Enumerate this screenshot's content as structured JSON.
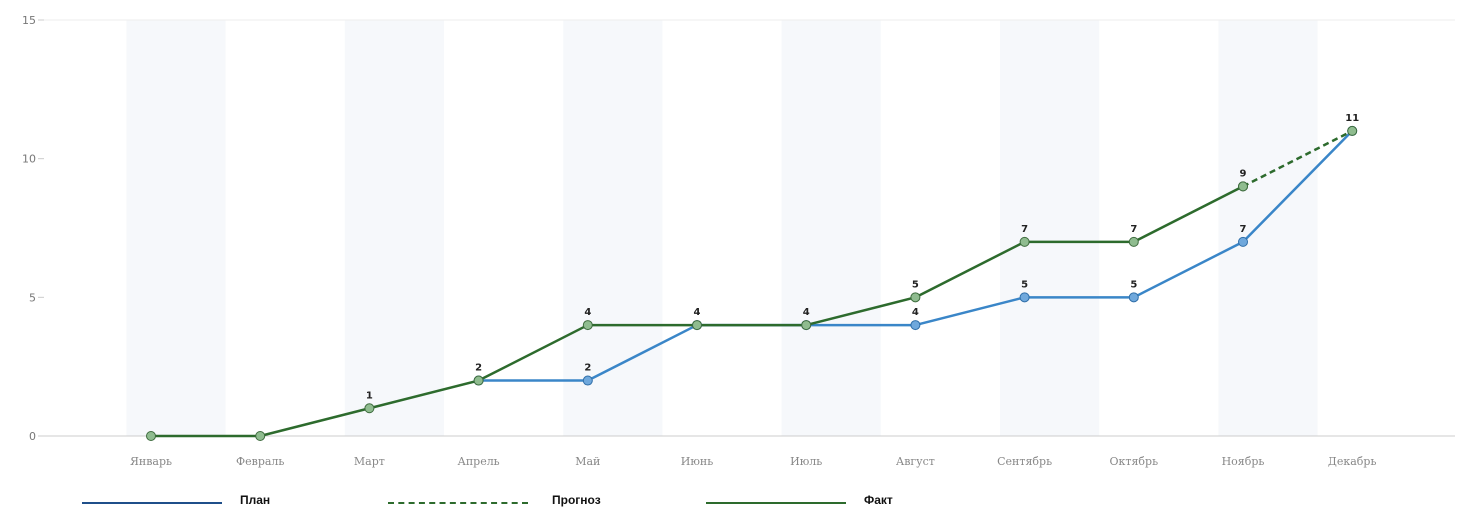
{
  "chart_data": {
    "type": "line",
    "categories": [
      "Январь",
      "Февраль",
      "Март",
      "Апрель",
      "Май",
      "Июнь",
      "Июль",
      "Август",
      "Сентябрь",
      "Октябрь",
      "Ноябрь",
      "Декабрь"
    ],
    "ylim": [
      0,
      15
    ],
    "yticks": [
      "0",
      "5",
      "10",
      "15"
    ],
    "grid": false,
    "legend_position": "bottom",
    "series": [
      {
        "name": "План",
        "color": "#3a86c8",
        "style": "solid",
        "values": [
          null,
          null,
          null,
          2,
          2,
          4,
          4,
          4,
          5,
          5,
          7,
          11
        ],
        "labels": [
          "",
          "",
          "",
          "",
          "2",
          "",
          "",
          "4",
          "5",
          "5",
          "7",
          ""
        ]
      },
      {
        "name": "Прогноз",
        "color": "#2d6b2d",
        "style": "dashed",
        "values": [
          null,
          null,
          null,
          null,
          null,
          null,
          null,
          null,
          null,
          null,
          9,
          11
        ],
        "labels": [
          "",
          "",
          "",
          "",
          "",
          "",
          "",
          "",
          "",
          "",
          "",
          "11"
        ]
      },
      {
        "name": "Факт",
        "color": "#2d6b2d",
        "style": "solid",
        "values": [
          0,
          0,
          1,
          2,
          4,
          4,
          4,
          5,
          7,
          7,
          9,
          null
        ],
        "labels": [
          "",
          "",
          "1",
          "2",
          "4",
          "4",
          "4",
          "5",
          "7",
          "7",
          "9",
          ""
        ]
      }
    ]
  },
  "legend": {
    "plan": "План",
    "forecast": "Прогноз",
    "fact": "Факт"
  },
  "colors": {
    "plan": "#3a86c8",
    "plan_legend": "#1f4f8a",
    "fact": "#2d6b2d",
    "marker_plan": "#6fa8dc",
    "marker_fact": "#8fbc8f",
    "axis": "#cccccc"
  }
}
